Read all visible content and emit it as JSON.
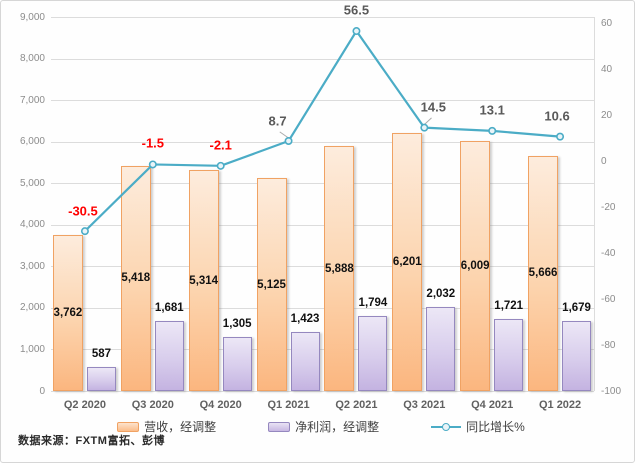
{
  "chart_data": {
    "type": "bar",
    "subtype": "combo-bar-line-dual-axis",
    "title": "",
    "categories": [
      "Q2 2020",
      "Q3 2020",
      "Q4 2020",
      "Q1 2021",
      "Q2 2021",
      "Q3 2021",
      "Q4 2021",
      "Q1 2022"
    ],
    "series": [
      {
        "name": "营收，经调整",
        "axis": "left",
        "values": [
          3762,
          5418,
          5314,
          5125,
          5888,
          6201,
          6009,
          5666
        ]
      },
      {
        "name": "净利润，经调整",
        "axis": "left",
        "values": [
          587,
          1681,
          1305,
          1423,
          1794,
          2032,
          1721,
          1679
        ]
      }
    ],
    "line": {
      "name": "同比增长%",
      "axis": "right",
      "values": [
        -30.5,
        -1.5,
        -2.1,
        8.7,
        56.5,
        14.5,
        13.1,
        10.6
      ]
    },
    "left_axis": {
      "min": 0,
      "max": 9000,
      "step": 1000
    },
    "right_axis": {
      "min": -100,
      "max": 60,
      "step": 20
    },
    "grid": true,
    "legend_position": "bottom",
    "colors": {
      "revenue_fill": "#fcd4ae",
      "revenue_border": "#f0a263",
      "profit_fill": "#d8cdec",
      "profit_border": "#9588bf",
      "growth_line": "#4bacc6",
      "negative_label": "#ff0000",
      "positive_label": "#595959",
      "bar_label": "#111111",
      "grid": "#dcdcdc",
      "axis_text": "#8c8c8c"
    }
  },
  "source": {
    "text": "数据来源：FXTM富拓、彭博"
  }
}
